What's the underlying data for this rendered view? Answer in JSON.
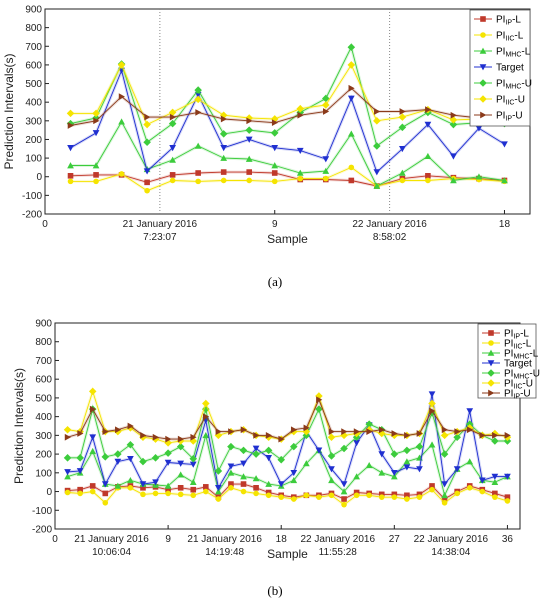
{
  "legend_entries": [
    {
      "prefix": "PI",
      "sub": "IP",
      "suffix": "-L",
      "color": "#c0392b",
      "marker": "square"
    },
    {
      "prefix": "PI",
      "sub": "IIC",
      "suffix": "-L",
      "color": "#f5e400",
      "marker": "circle"
    },
    {
      "prefix": "PI",
      "sub": "MHC",
      "suffix": "-L",
      "color": "#3ccc3c",
      "marker": "triangle-up"
    },
    {
      "prefix": "Target",
      "sub": "",
      "suffix": "",
      "color": "#1f2fd0",
      "marker": "triangle-down"
    },
    {
      "prefix": "PI",
      "sub": "MHC",
      "suffix": "-U",
      "color": "#3ccc3c",
      "marker": "diamond"
    },
    {
      "prefix": "PI",
      "sub": "IIC",
      "suffix": "-U",
      "color": "#f5e400",
      "marker": "diamond"
    },
    {
      "prefix": "PI",
      "sub": "IP",
      "suffix": "-U",
      "color": "#8b3a1a",
      "marker": "triangle-right"
    }
  ],
  "chart_data": [
    {
      "type": "line",
      "caption": "(a)",
      "xlabel": "Sample",
      "ylabel": "Prediction Intervals(s)",
      "xlim": [
        0,
        19
      ],
      "ylim": [
        -200,
        900
      ],
      "xticks": [
        0,
        9,
        18
      ],
      "yticks": [
        -200,
        -100,
        0,
        100,
        200,
        300,
        400,
        500,
        600,
        700,
        800,
        900
      ],
      "vlines": [
        4.5,
        13.5
      ],
      "date_labels": [
        {
          "x": 4.5,
          "line1": "21 January 2016",
          "line2": "7:23:07"
        },
        {
          "x": 13.5,
          "line1": "22 January 2016",
          "line2": "8:58:02"
        }
      ],
      "x": [
        1,
        2,
        3,
        4,
        5,
        6,
        7,
        8,
        9,
        10,
        11,
        12,
        13,
        14,
        15,
        16,
        17,
        18
      ],
      "series": [
        {
          "name": "PI_IP-L",
          "values": [
            5,
            10,
            10,
            -30,
            10,
            20,
            25,
            25,
            20,
            -15,
            -15,
            -20,
            -50,
            -10,
            5,
            -5,
            -10,
            -20
          ]
        },
        {
          "name": "PI_IIC-L",
          "values": [
            -25,
            -25,
            15,
            -75,
            -20,
            -25,
            -20,
            -20,
            -25,
            -10,
            -10,
            50,
            -50,
            -20,
            -20,
            -10,
            -15,
            -25
          ]
        },
        {
          "name": "PI_MHC-L",
          "values": [
            60,
            60,
            295,
            40,
            90,
            165,
            100,
            95,
            60,
            20,
            30,
            230,
            -50,
            20,
            110,
            -20,
            0,
            -20
          ]
        },
        {
          "name": "Target",
          "values": [
            155,
            235,
            570,
            30,
            155,
            440,
            155,
            200,
            155,
            140,
            95,
            420,
            25,
            150,
            280,
            110,
            260,
            175
          ]
        },
        {
          "name": "PI_MHC-U",
          "values": [
            285,
            315,
            605,
            185,
            285,
            465,
            230,
            250,
            235,
            345,
            420,
            695,
            165,
            265,
            345,
            280,
            290,
            285
          ]
        },
        {
          "name": "PI_IIC-U",
          "values": [
            340,
            340,
            600,
            280,
            345,
            415,
            330,
            315,
            310,
            365,
            385,
            600,
            300,
            320,
            360,
            305,
            310,
            295
          ]
        },
        {
          "name": "PI_IP-U",
          "values": [
            275,
            300,
            430,
            320,
            320,
            345,
            310,
            300,
            290,
            330,
            350,
            475,
            350,
            350,
            360,
            330,
            315,
            300
          ]
        }
      ]
    },
    {
      "type": "line",
      "caption": "(b)",
      "xlabel": "Sample",
      "ylabel": "Prediction Intervals(s)",
      "xlim": [
        0,
        37
      ],
      "ylim": [
        -200,
        900
      ],
      "xticks": [
        0,
        9,
        18,
        27,
        36
      ],
      "yticks": [
        -200,
        -100,
        0,
        100,
        200,
        300,
        400,
        500,
        600,
        700,
        800,
        900
      ],
      "vlines": [],
      "date_labels": [
        {
          "x": 4.5,
          "line1": "21 January 2016",
          "line2": "10:06:04"
        },
        {
          "x": 13.5,
          "line1": "21 January 2016",
          "line2": "14:19:48"
        },
        {
          "x": 22.5,
          "line1": "22 January 2016",
          "line2": "11:55:28"
        },
        {
          "x": 31.5,
          "line1": "22 January 2016",
          "line2": "14:38:04"
        }
      ],
      "x": [
        1,
        2,
        3,
        4,
        5,
        6,
        7,
        8,
        9,
        10,
        11,
        12,
        13,
        14,
        15,
        16,
        17,
        18,
        19,
        20,
        21,
        22,
        23,
        24,
        25,
        26,
        27,
        28,
        29,
        30,
        31,
        32,
        33,
        34,
        35,
        36
      ],
      "series": [
        {
          "name": "PI_IP-L",
          "values": [
            5,
            10,
            30,
            -10,
            25,
            30,
            20,
            25,
            10,
            20,
            10,
            25,
            -30,
            40,
            40,
            20,
            -5,
            -20,
            -30,
            -20,
            -20,
            -10,
            -40,
            -5,
            -10,
            -15,
            -15,
            -20,
            -15,
            30,
            -40,
            0,
            30,
            10,
            -10,
            -30
          ]
        },
        {
          "name": "PI_IIC-L",
          "values": [
            -5,
            -10,
            0,
            -60,
            20,
            20,
            -15,
            -10,
            -10,
            -15,
            -20,
            0,
            -40,
            20,
            0,
            -10,
            -20,
            -30,
            -40,
            -20,
            -30,
            -20,
            -70,
            -20,
            -20,
            -30,
            -30,
            -40,
            -30,
            10,
            -60,
            -10,
            20,
            0,
            -30,
            -50
          ]
        },
        {
          "name": "PI_MHC-L",
          "values": [
            80,
            100,
            215,
            40,
            30,
            60,
            40,
            35,
            30,
            90,
            50,
            300,
            0,
            100,
            80,
            70,
            40,
            30,
            60,
            150,
            220,
            60,
            0,
            80,
            140,
            100,
            80,
            160,
            180,
            250,
            -20,
            120,
            160,
            60,
            50,
            80
          ]
        },
        {
          "name": "Target",
          "values": [
            105,
            110,
            290,
            40,
            160,
            175,
            40,
            50,
            155,
            150,
            145,
            380,
            20,
            135,
            150,
            230,
            180,
            40,
            100,
            320,
            220,
            120,
            40,
            260,
            355,
            200,
            100,
            130,
            120,
            520,
            40,
            120,
            430,
            60,
            80,
            80
          ]
        },
        {
          "name": "PI_MHC-U",
          "values": [
            180,
            180,
            440,
            185,
            200,
            250,
            160,
            180,
            205,
            240,
            175,
            440,
            110,
            240,
            220,
            200,
            220,
            170,
            240,
            300,
            440,
            190,
            230,
            290,
            360,
            330,
            200,
            220,
            240,
            420,
            200,
            290,
            360,
            300,
            270,
            270
          ]
        },
        {
          "name": "PI_IIC-U",
          "values": [
            330,
            320,
            535,
            320,
            320,
            340,
            290,
            280,
            260,
            270,
            270,
            470,
            300,
            320,
            330,
            300,
            290,
            280,
            320,
            320,
            510,
            290,
            300,
            310,
            330,
            310,
            300,
            300,
            310,
            470,
            300,
            320,
            340,
            300,
            310,
            290
          ]
        },
        {
          "name": "PI_IP-U",
          "values": [
            290,
            310,
            440,
            320,
            330,
            350,
            300,
            290,
            280,
            280,
            290,
            400,
            320,
            320,
            330,
            300,
            300,
            280,
            330,
            340,
            490,
            320,
            320,
            320,
            320,
            330,
            310,
            300,
            310,
            430,
            330,
            320,
            330,
            300,
            300,
            300
          ]
        }
      ]
    }
  ]
}
